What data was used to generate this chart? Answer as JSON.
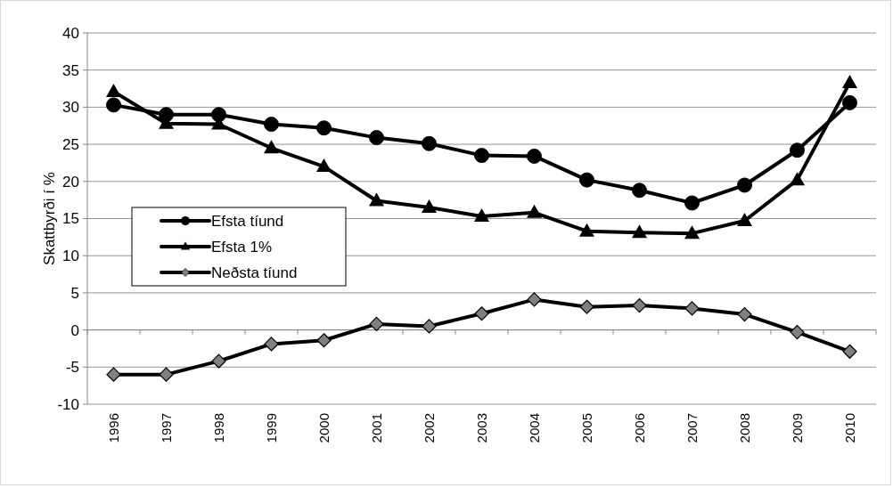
{
  "chart_data": {
    "type": "line",
    "ylabel": "Skattbyrði í %",
    "categories": [
      "1996",
      "1997",
      "1998",
      "1999",
      "2000",
      "2001",
      "2002",
      "2003",
      "2004",
      "2005",
      "2006",
      "2007",
      "2008",
      "2009",
      "2010"
    ],
    "series": [
      {
        "name": "Efsta tíund",
        "color": "#000000",
        "marker": "circle",
        "values": [
          30.3,
          29.0,
          29.0,
          27.7,
          27.2,
          25.9,
          25.1,
          23.5,
          23.4,
          20.2,
          18.8,
          17.1,
          19.5,
          24.2,
          30.6
        ]
      },
      {
        "name": "Efsta 1%",
        "color": "#000000",
        "marker": "triangle",
        "values": [
          32.1,
          27.8,
          27.7,
          24.5,
          22.0,
          17.4,
          16.5,
          15.3,
          15.8,
          13.3,
          13.1,
          13.0,
          14.7,
          20.2,
          33.3
        ]
      },
      {
        "name": "Neðsta tíund",
        "color": "#000000",
        "marker": "diamond",
        "values": [
          -6.0,
          -6.0,
          -4.2,
          -1.9,
          -1.4,
          0.8,
          0.5,
          2.2,
          4.1,
          3.1,
          3.3,
          2.9,
          2.1,
          -0.3,
          -2.9
        ]
      }
    ],
    "ylim": [
      -10,
      40
    ],
    "yticks": [
      -10,
      -5,
      0,
      5,
      10,
      15,
      20,
      25,
      30,
      35,
      40
    ],
    "grid": "y",
    "legend": "left"
  }
}
